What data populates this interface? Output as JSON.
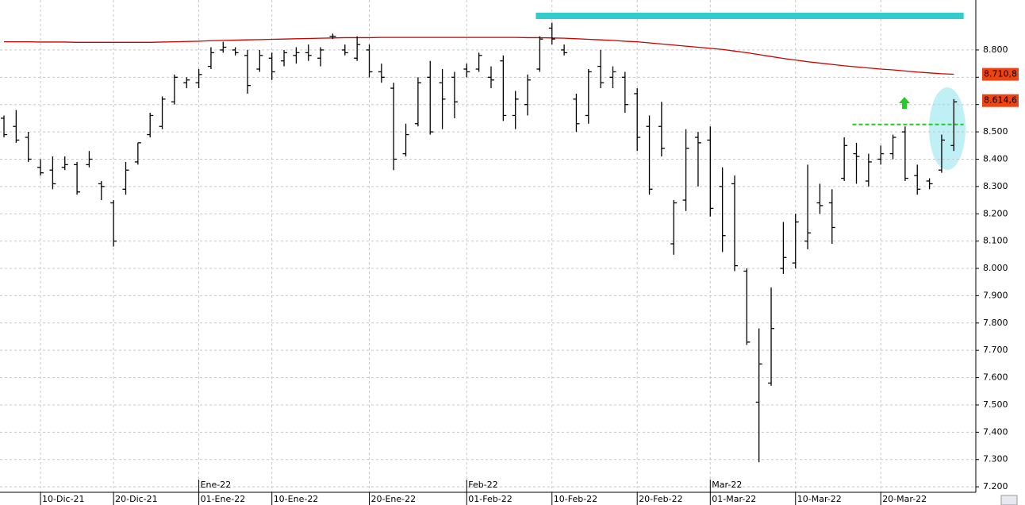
{
  "chart_data": {
    "type": "ohlc",
    "categories": [
      null,
      null,
      null,
      "10-Dic-21",
      null,
      null,
      null,
      null,
      null,
      "20-Dic-21",
      null,
      null,
      null,
      null,
      null,
      null,
      "01-Ene-22",
      null,
      null,
      null,
      null,
      null,
      "10-Ene-22",
      null,
      null,
      null,
      null,
      null,
      null,
      null,
      "20-Ene-22",
      null,
      null,
      null,
      null,
      null,
      null,
      null,
      "01-Feb-22",
      null,
      null,
      null,
      null,
      null,
      null,
      "10-Feb-22",
      null,
      null,
      null,
      null,
      null,
      null,
      "20-Feb-22",
      null,
      null,
      null,
      null,
      null,
      "01-Mar-22",
      null,
      null,
      null,
      null,
      null,
      null,
      "10-Mar-22",
      null,
      null,
      null,
      null,
      null,
      null,
      "20-Mar-22",
      null,
      null,
      null,
      null,
      null,
      null
    ],
    "month_labels": [
      null,
      null,
      null,
      null,
      null,
      null,
      null,
      null,
      null,
      null,
      null,
      null,
      null,
      null,
      null,
      null,
      "Ene-22",
      null,
      null,
      null,
      null,
      null,
      null,
      null,
      null,
      null,
      null,
      null,
      null,
      null,
      null,
      null,
      null,
      null,
      null,
      null,
      null,
      null,
      "Feb-22",
      null,
      null,
      null,
      null,
      null,
      null,
      null,
      null,
      null,
      null,
      null,
      null,
      null,
      null,
      null,
      null,
      null,
      null,
      null,
      "Mar-22",
      null,
      null,
      null,
      null,
      null,
      null,
      null,
      null,
      null,
      null,
      null,
      null,
      null,
      null,
      null,
      null,
      null,
      null,
      null
    ],
    "open": [
      8550,
      8520,
      8480,
      8370,
      8360,
      8370,
      8380,
      8380,
      8310,
      8240,
      8290,
      8390,
      8490,
      8520,
      8610,
      8680,
      8680,
      8740,
      8800,
      8800,
      8780,
      8730,
      8770,
      8760,
      8780,
      8790,
      8770,
      8850,
      8800,
      8770,
      8800,
      8720,
      8660,
      8420,
      8530,
      8700,
      8680,
      8700,
      8730,
      8730,
      8700,
      8760,
      8560,
      8600,
      8730,
      8880,
      8800,
      8620,
      8560,
      8740,
      8700,
      8700,
      8640,
      8520,
      8520,
      8090,
      8250,
      8480,
      8470,
      8300,
      8310,
      7990,
      7510,
      7580,
      8000,
      8020,
      8100,
      8240,
      8240,
      8330,
      8420,
      8320,
      8400,
      8420,
      8500,
      8340,
      8320,
      8360,
      8450
    ],
    "high": [
      8560,
      8580,
      8500,
      8400,
      8410,
      8410,
      8390,
      8430,
      8320,
      8250,
      8390,
      8460,
      8570,
      8630,
      8710,
      8700,
      8730,
      8810,
      8830,
      8810,
      8800,
      8800,
      8790,
      8800,
      8810,
      8820,
      8810,
      8860,
      8820,
      8850,
      8820,
      8750,
      8680,
      8530,
      8700,
      8760,
      8730,
      8720,
      8750,
      8790,
      8740,
      8780,
      8650,
      8710,
      8850,
      8900,
      8820,
      8640,
      8730,
      8800,
      8740,
      8720,
      8660,
      8560,
      8610,
      8250,
      8510,
      8500,
      8520,
      8370,
      8340,
      8000,
      7780,
      7930,
      8170,
      8200,
      8380,
      8310,
      8290,
      8480,
      8460,
      8420,
      8450,
      8490,
      8520,
      8380,
      8330,
      8490,
      8620
    ],
    "low": [
      8480,
      8460,
      8390,
      8340,
      8290,
      8360,
      8270,
      8370,
      8250,
      8080,
      8270,
      8380,
      8480,
      8510,
      8600,
      8660,
      8660,
      8730,
      8790,
      8780,
      8640,
      8720,
      8690,
      8740,
      8750,
      8760,
      8740,
      8840,
      8780,
      8760,
      8700,
      8680,
      8360,
      8410,
      8520,
      8490,
      8510,
      8550,
      8700,
      8720,
      8660,
      8540,
      8510,
      8560,
      8720,
      8820,
      8780,
      8500,
      8530,
      8660,
      8660,
      8570,
      8430,
      8270,
      8410,
      8050,
      8210,
      8300,
      8190,
      8060,
      7990,
      7720,
      7290,
      7570,
      7980,
      8000,
      8070,
      8200,
      8090,
      8320,
      8310,
      8300,
      8380,
      8400,
      8320,
      8270,
      8290,
      8350,
      8430
    ],
    "close": [
      8490,
      8470,
      8400,
      8350,
      8310,
      8380,
      8280,
      8400,
      8300,
      8100,
      8360,
      8460,
      8560,
      8620,
      8700,
      8690,
      8710,
      8790,
      8810,
      8790,
      8670,
      8780,
      8720,
      8790,
      8790,
      8780,
      8800,
      8850,
      8790,
      8820,
      8720,
      8700,
      8400,
      8490,
      8680,
      8500,
      8620,
      8610,
      8720,
      8780,
      8690,
      8560,
      8620,
      8690,
      8840,
      8840,
      8790,
      8530,
      8720,
      8680,
      8720,
      8600,
      8480,
      8290,
      8440,
      8240,
      8440,
      8460,
      8220,
      8120,
      8010,
      7730,
      7650,
      7780,
      8040,
      8170,
      8130,
      8230,
      8150,
      8450,
      8410,
      8390,
      8420,
      8480,
      8330,
      8290,
      8310,
      8470,
      8610
    ],
    "bar_color": "#000000",
    "moving_average": {
      "color": "#cc0000",
      "values": [
        8830,
        8830,
        8830,
        8829,
        8829,
        8829,
        8828,
        8828,
        8828,
        8828,
        8828,
        8828,
        8828,
        8829,
        8830,
        8831,
        8832,
        8834,
        8835,
        8836,
        8837,
        8838,
        8839,
        8840,
        8841,
        8842,
        8843,
        8844,
        8845,
        8845,
        8845,
        8846,
        8846,
        8846,
        8846,
        8846,
        8846,
        8846,
        8846,
        8846,
        8846,
        8846,
        8846,
        8845,
        8845,
        8844,
        8843,
        8841,
        8839,
        8837,
        8835,
        8832,
        8830,
        8826,
        8822,
        8818,
        8814,
        8810,
        8806,
        8802,
        8796,
        8790,
        8783,
        8776,
        8769,
        8763,
        8757,
        8752,
        8747,
        8742,
        8738,
        8734,
        8730,
        8727,
        8723,
        8719,
        8716,
        8713,
        8711
      ]
    },
    "levels": [
      {
        "value": 8925,
        "from": 44,
        "to": 79,
        "color": "#33cccc",
        "dashed": false
      },
      {
        "value": 8527,
        "from": 70,
        "to": 79,
        "color": "#22cc22",
        "dashed": true
      }
    ],
    "value_badges": [
      {
        "value": 8710.8,
        "label": "8.710,8",
        "color": "#ee4411"
      },
      {
        "value": 8614.6,
        "label": "8.614,6",
        "color": "#ee4411"
      }
    ],
    "ylim": [
      7180,
      8983
    ],
    "yticks": [
      {
        "value": 7200,
        "label": "7.200"
      },
      {
        "value": 7300,
        "label": "7.300"
      },
      {
        "value": 7400,
        "label": "7.400"
      },
      {
        "value": 7500,
        "label": "7.500"
      },
      {
        "value": 7600,
        "label": "7.600"
      },
      {
        "value": 7700,
        "label": "7.700"
      },
      {
        "value": 7800,
        "label": "7.800"
      },
      {
        "value": 7900,
        "label": "7.900"
      },
      {
        "value": 8000,
        "label": "8.000"
      },
      {
        "value": 8100,
        "label": "8.100"
      },
      {
        "value": 8200,
        "label": "8.200"
      },
      {
        "value": 8300,
        "label": "8.300"
      },
      {
        "value": 8400,
        "label": "8.400"
      },
      {
        "value": 8500,
        "label": "8.500"
      },
      {
        "value": 8600,
        "label": "8.600"
      },
      {
        "value": 8700,
        "label": "8.700"
      },
      {
        "value": 8800,
        "label": "8.800"
      }
    ],
    "grid": true
  }
}
